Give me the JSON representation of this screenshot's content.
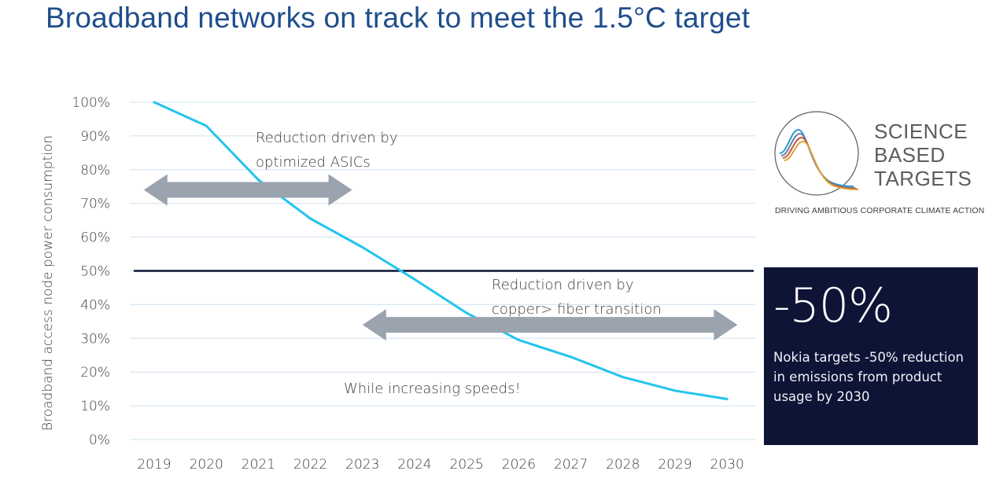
{
  "title": "Broadband networks on track to meet the 1.5°C target",
  "chart_data": {
    "type": "line",
    "ylabel": "Broadband access node power consumption",
    "xlabel": "",
    "categories": [
      "2019",
      "2020",
      "2021",
      "2022",
      "2023",
      "2024",
      "2025",
      "2026",
      "2027",
      "2028",
      "2029",
      "2030"
    ],
    "yticks": [
      "0%",
      "10%",
      "20%",
      "30%",
      "40%",
      "50%",
      "60%",
      "70%",
      "80%",
      "90%",
      "100%"
    ],
    "ylim": [
      0,
      100
    ],
    "series": [
      {
        "values": [
          100,
          93,
          77,
          65.5,
          57,
          47.5,
          37.5,
          29.5,
          24.5,
          18.5,
          14.5,
          12
        ]
      }
    ],
    "target_line": {
      "value": 50
    },
    "grid": true,
    "annotations": [
      {
        "text_lines": [
          "Reduction driven by",
          "optimized ASICs"
        ],
        "arrow_from_x": 2018.8,
        "arrow_to_x": 2022.8,
        "arrow_y": 74
      },
      {
        "text_lines": [
          "Reduction driven by",
          "copper> fiber transition"
        ],
        "arrow_from_x": 2023,
        "arrow_to_x": 2030.2,
        "arrow_y": 34
      },
      {
        "text_lines": [
          "While increasing speeds!"
        ]
      }
    ],
    "colors": {
      "line": "#22c4ee",
      "target": "#0d1436",
      "grid": "#cfe0ef",
      "arrow": "#9aa3ae"
    }
  },
  "logo": {
    "words": [
      "SCIENCE",
      "BASED",
      "TARGETS"
    ],
    "tagline": "DRIVING AMBITIOUS CORPORATE CLIMATE ACTION"
  },
  "callout": {
    "big": "-50%",
    "text": "Nokia targets -50% reduction in emissions from product usage by 2030"
  }
}
